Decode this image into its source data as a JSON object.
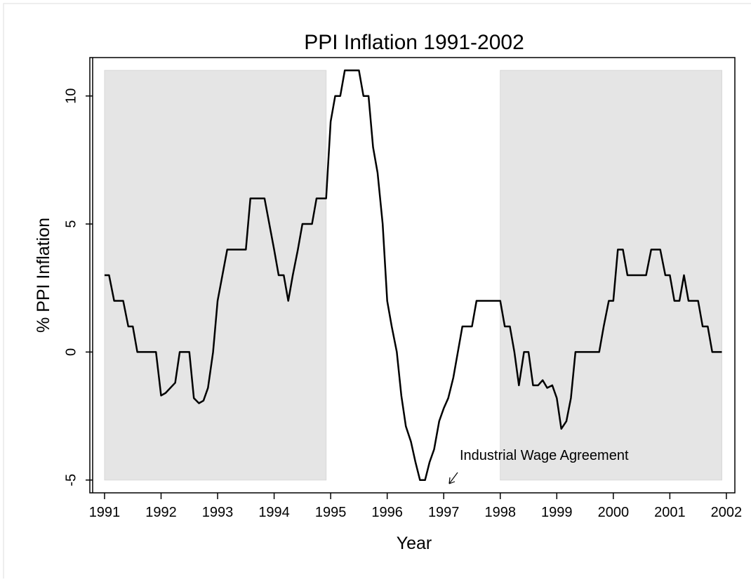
{
  "chart_data": {
    "type": "line",
    "title": "PPI Inflation  1991-2002",
    "x_label": "Year",
    "y_label": "% PPI Inflation",
    "xlim": [
      1990.74,
      2002.15
    ],
    "ylim": [
      -5.5,
      11.5
    ],
    "xticks": [
      1991,
      1992,
      1993,
      1994,
      1995,
      1996,
      1997,
      1998,
      1999,
      2000,
      2001,
      2002
    ],
    "yticks": [
      -5,
      0,
      5,
      10
    ],
    "shaded_bands": {
      "color": "#e5e5e5",
      "ylim": [
        -5,
        11
      ],
      "x": [
        [
          1991,
          1994.92
        ],
        [
          1998,
          2001.92
        ]
      ]
    },
    "annotation": {
      "text": "Industrial Wage Agreement"
    },
    "x": [
      1991.0,
      1991.08,
      1991.17,
      1991.25,
      1991.33,
      1991.42,
      1991.5,
      1991.58,
      1991.67,
      1991.75,
      1991.91,
      1992.0,
      1992.08,
      1992.25,
      1992.33,
      1992.5,
      1992.58,
      1992.67,
      1992.75,
      1992.83,
      1992.92,
      1993.0,
      1993.17,
      1993.5,
      1993.58,
      1993.83,
      1994.0,
      1994.08,
      1994.17,
      1994.25,
      1994.33,
      1994.42,
      1994.5,
      1994.67,
      1994.75,
      1994.92,
      1995.0,
      1995.08,
      1995.17,
      1995.25,
      1995.5,
      1995.58,
      1995.67,
      1995.75,
      1995.83,
      1995.92,
      1996.0,
      1996.08,
      1996.17,
      1996.25,
      1996.33,
      1996.42,
      1996.5,
      1996.58,
      1996.67,
      1996.75,
      1996.83,
      1996.92,
      1997.0,
      1997.08,
      1997.17,
      1997.25,
      1997.33,
      1997.5,
      1997.58,
      1997.75,
      1997.83,
      1998.0,
      1998.08,
      1998.17,
      1998.25,
      1998.33,
      1998.42,
      1998.5,
      1998.58,
      1998.67,
      1998.75,
      1998.83,
      1998.92,
      1999.0,
      1999.08,
      1999.17,
      1999.25,
      1999.33,
      1999.5,
      1999.67,
      1999.75,
      1999.83,
      1999.92,
      2000.0,
      2000.08,
      2000.17,
      2000.25,
      2000.5,
      2000.58,
      2000.67,
      2000.83,
      2000.92,
      2001.0,
      2001.08,
      2001.17,
      2001.25,
      2001.33,
      2001.5,
      2001.58,
      2001.67,
      2001.75,
      2001.92
    ],
    "series": [
      {
        "name": "PPI Inflation",
        "color": "#000000",
        "values": [
          3,
          3,
          2,
          2,
          2,
          1,
          1,
          0,
          0,
          0,
          0,
          -1.7,
          -1.6,
          -1.2,
          0,
          0,
          -1.8,
          -2.0,
          -1.9,
          -1.4,
          0,
          2,
          4,
          4,
          6,
          6,
          4,
          3,
          3,
          2,
          3,
          4,
          5,
          5,
          6,
          6,
          9,
          10,
          10,
          11,
          11,
          10,
          10,
          8,
          7,
          5,
          2,
          1,
          0,
          -1.7,
          -2.9,
          -3.5,
          -4.3,
          -5,
          -5,
          -4.3,
          -3.8,
          -2.7,
          -2.2,
          -1.8,
          -1.0,
          0,
          1,
          1,
          2,
          2,
          2,
          2,
          1,
          1,
          0,
          -1.3,
          0,
          0,
          -1.3,
          -1.3,
          -1.1,
          -1.4,
          -1.3,
          -1.8,
          -3.0,
          -2.7,
          -1.8,
          0,
          0,
          0,
          0,
          1,
          2,
          2,
          4,
          4,
          3,
          3,
          3,
          4,
          4,
          3,
          3,
          2,
          2,
          3,
          2,
          2,
          1,
          1,
          0,
          0
        ]
      }
    ]
  }
}
